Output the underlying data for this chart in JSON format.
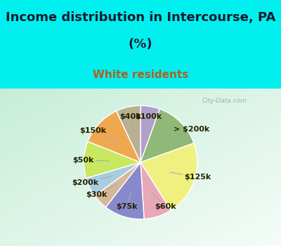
{
  "title_line1": "Income distribution in Intercourse, PA",
  "title_line2": "(%)",
  "subtitle": "White residents",
  "title_color": "#1a1a2e",
  "subtitle_color": "#b06020",
  "bg_cyan": "#00f0f0",
  "labels": [
    "$100k",
    "> $200k",
    "$125k",
    "$60k",
    "$75k",
    "$30k",
    "$200k",
    "$50k",
    "$150k",
    "$40k"
  ],
  "values": [
    5.5,
    14.0,
    21.5,
    8.0,
    11.5,
    4.5,
    5.5,
    10.5,
    12.0,
    7.0
  ],
  "colors": [
    "#b0a0cc",
    "#90b878",
    "#f0f080",
    "#e8a8b8",
    "#8888cc",
    "#d4b898",
    "#a8cce0",
    "#c8e860",
    "#f0a850",
    "#b8b090"
  ],
  "label_color": "#222200",
  "label_fontsize": 8,
  "wedge_edge_color": "white",
  "wedge_linewidth": 1.0,
  "title_fontsize": 13,
  "subtitle_fontsize": 11
}
